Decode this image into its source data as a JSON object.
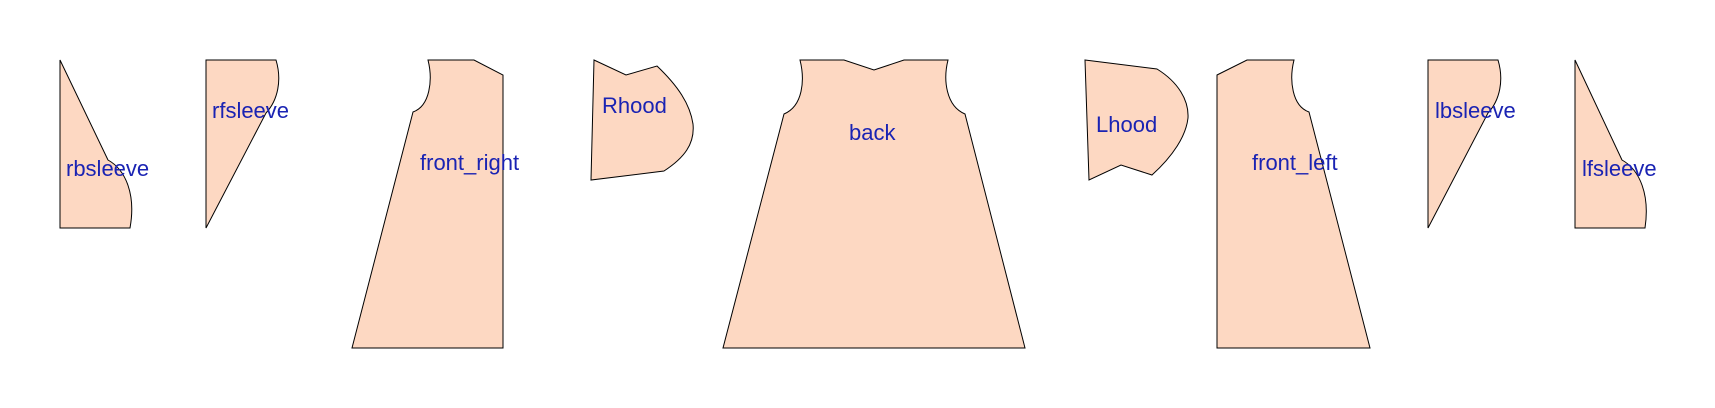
{
  "colors": {
    "background": "#ffffff",
    "piece_fill": "#fdd8c2",
    "piece_stroke": "#000000",
    "label_color": "#1a23b3"
  },
  "pieces": [
    {
      "id": "rbsleeve",
      "label": "rbsleeve"
    },
    {
      "id": "rfsleeve",
      "label": "rfsleeve"
    },
    {
      "id": "front_right",
      "label": "front_right"
    },
    {
      "id": "rhood",
      "label": "Rhood"
    },
    {
      "id": "back",
      "label": "back"
    },
    {
      "id": "lhood",
      "label": "Lhood"
    },
    {
      "id": "front_left",
      "label": "front_left"
    },
    {
      "id": "lbsleeve",
      "label": "lbsleeve"
    },
    {
      "id": "lfsleeve",
      "label": "lfsleeve"
    }
  ]
}
